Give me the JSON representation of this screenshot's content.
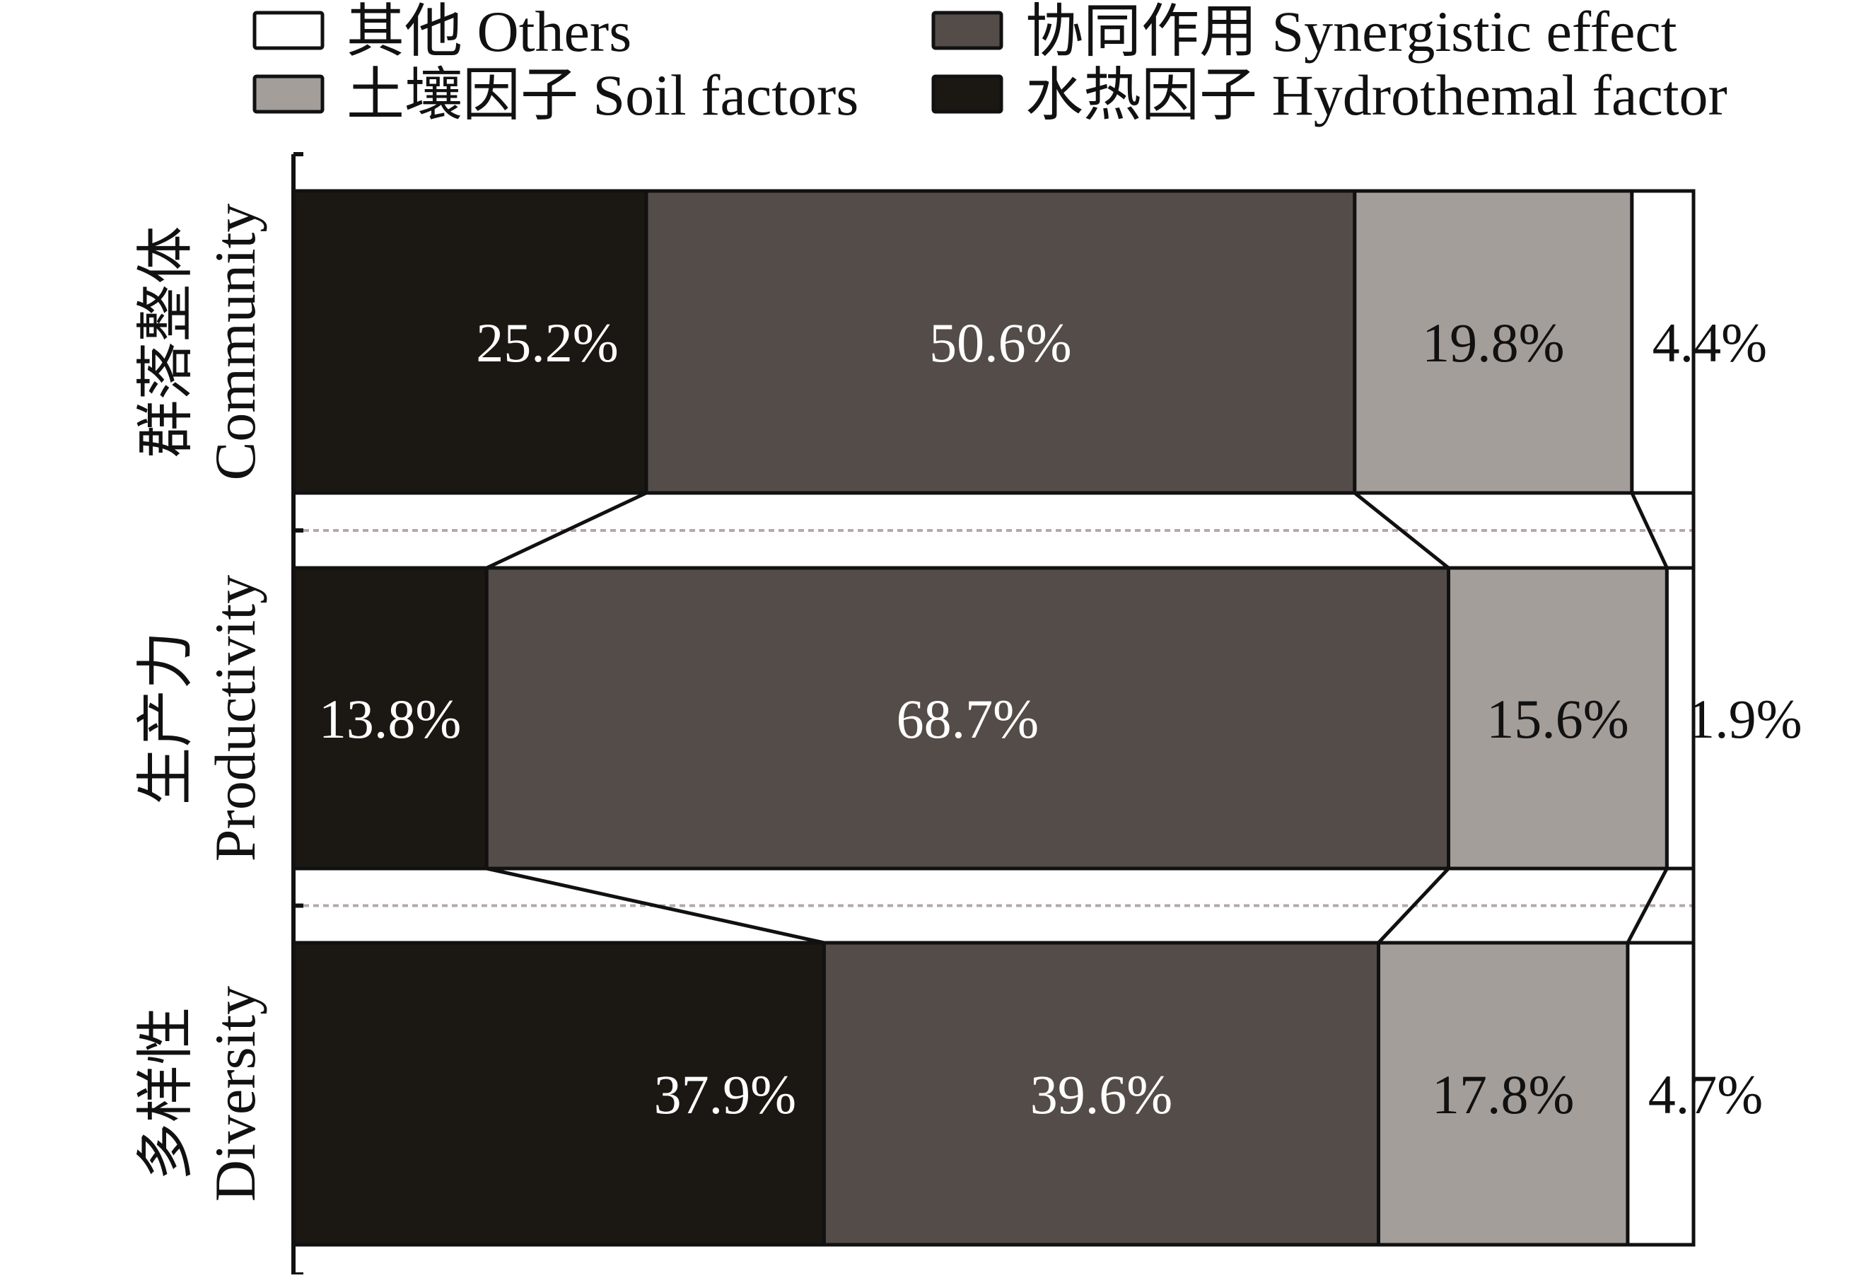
{
  "chart_data": {
    "type": "bar",
    "stacked": true,
    "orientation": "horizontal",
    "percent_stacked": true,
    "categories": [
      {
        "zh": "群落整体",
        "en": "Community"
      },
      {
        "zh": "生产力",
        "en": "Productivity"
      },
      {
        "zh": "多样性",
        "en": "Diversity"
      }
    ],
    "series": [
      {
        "name": "水热因子 Hydrothemal factor",
        "color": "#1b1814",
        "label_color": "#ffffff",
        "values": [
          25.2,
          13.8,
          37.9
        ],
        "labels": [
          "25.2%",
          "13.8%",
          "37.9%"
        ]
      },
      {
        "name": "协同作用 Synergistic effect",
        "color": "#544c49",
        "label_color": "#ffffff",
        "values": [
          50.6,
          68.7,
          39.6
        ],
        "labels": [
          "50.6%",
          "68.7%",
          "39.6%"
        ]
      },
      {
        "name": "土壤因子 Soil factors",
        "color": "#a49e9b",
        "label_color": "#111111",
        "values": [
          19.8,
          15.6,
          17.8
        ],
        "labels": [
          "19.8%",
          "15.6%",
          "17.8%"
        ]
      },
      {
        "name": "其他 Others",
        "color": "#ffffff",
        "label_color": "#111111",
        "values": [
          4.4,
          1.9,
          4.7
        ],
        "labels": [
          "4.4%",
          "1.9%",
          "4.7%"
        ]
      }
    ],
    "legend_order": [
      "其他 Others",
      "协同作用 Synergistic effect",
      "土壤因子 Soil factors",
      "水热因子 Hydrothemal factor"
    ],
    "legend_position": "top",
    "grid": false,
    "connectors": true
  }
}
